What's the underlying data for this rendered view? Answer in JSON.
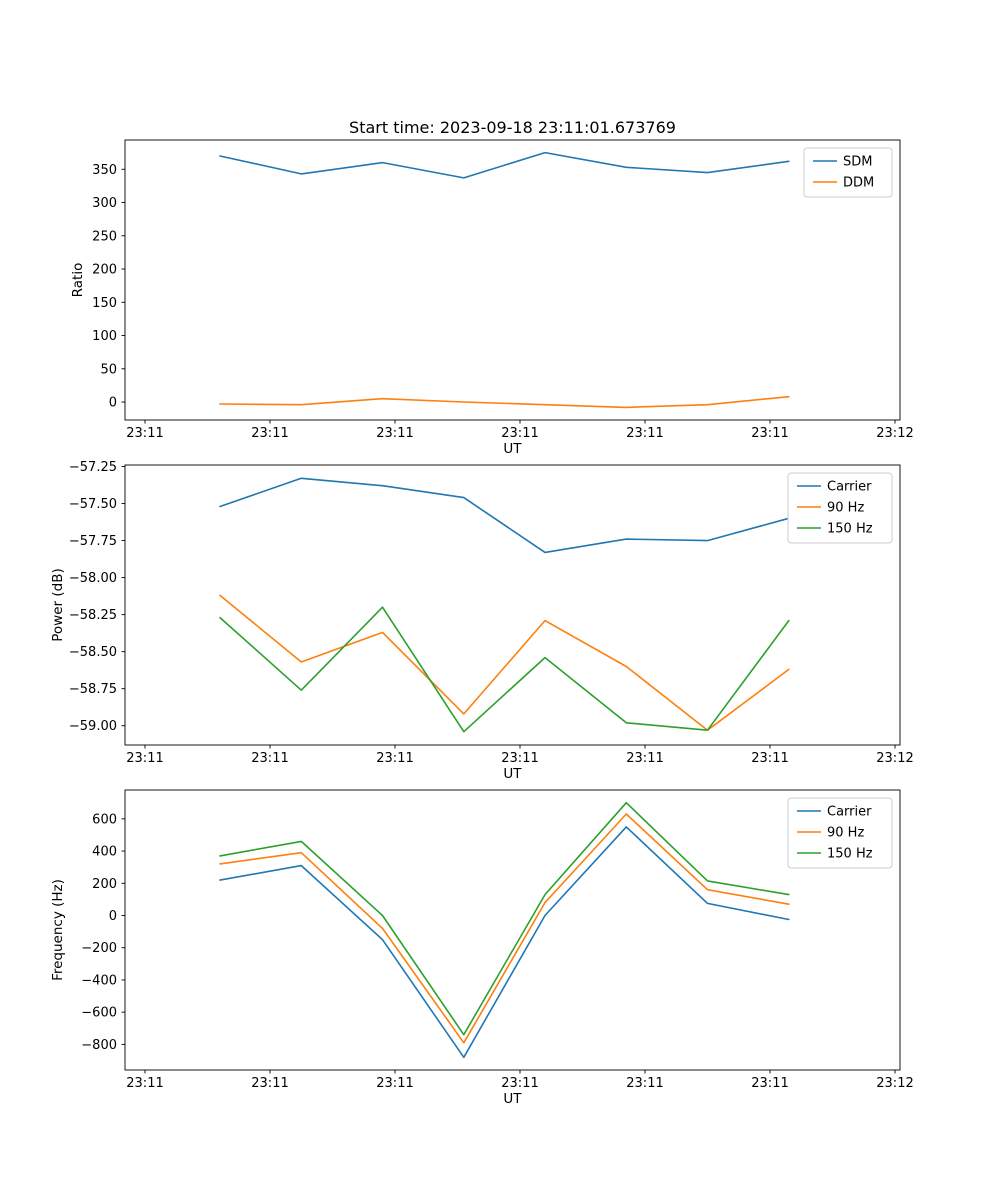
{
  "figure": {
    "background": "#ffffff"
  },
  "chart_data": [
    {
      "type": "line",
      "title": "Start time: 2023-09-18 23:11:01.673769",
      "xlabel": "UT",
      "ylabel": "Ratio",
      "legend_position": "upper right",
      "grid": false,
      "xlim": [
        0,
        60
      ],
      "ylim": [
        -27,
        394
      ],
      "xtick_labels": [
        "23:11",
        "23:11",
        "23:11",
        "23:11",
        "23:11",
        "23:11",
        "23:12"
      ],
      "yticks": [
        0,
        50,
        100,
        150,
        200,
        250,
        300,
        350
      ],
      "ytick_labels": [
        "0",
        "50",
        "100",
        "150",
        "200",
        "250",
        "300",
        "350"
      ],
      "x_seconds": [
        6,
        12.5,
        19,
        25.5,
        32,
        38.5,
        45,
        51.5
      ],
      "series": [
        {
          "name": "SDM",
          "color": "#1f77b4",
          "values": [
            370,
            343,
            360,
            337,
            375,
            353,
            345,
            362
          ]
        },
        {
          "name": "DDM",
          "color": "#ff7f0e",
          "values": [
            -3,
            -4,
            5,
            0,
            -4,
            -8,
            -4,
            8
          ]
        }
      ]
    },
    {
      "type": "line",
      "title": "",
      "xlabel": "UT",
      "ylabel": "Power (dB)",
      "legend_position": "upper right",
      "grid": false,
      "xlim": [
        0,
        60
      ],
      "ylim": [
        -59.13,
        -57.24
      ],
      "xtick_labels": [
        "23:11",
        "23:11",
        "23:11",
        "23:11",
        "23:11",
        "23:11",
        "23:12"
      ],
      "yticks": [
        -59.0,
        -58.75,
        -58.5,
        -58.25,
        -58.0,
        -57.75,
        -57.5,
        -57.25
      ],
      "ytick_labels": [
        "−59.00",
        "−58.75",
        "−58.50",
        "−58.25",
        "−58.00",
        "−57.75",
        "−57.50",
        "−57.25"
      ],
      "x_seconds": [
        6,
        12.5,
        19,
        25.5,
        32,
        38.5,
        45,
        51.5
      ],
      "series": [
        {
          "name": "Carrier",
          "color": "#1f77b4",
          "values": [
            -57.52,
            -57.33,
            -57.38,
            -57.46,
            -57.83,
            -57.74,
            -57.75,
            -57.6
          ]
        },
        {
          "name": "90 Hz",
          "color": "#ff7f0e",
          "values": [
            -58.12,
            -58.57,
            -58.37,
            -58.92,
            -58.29,
            -58.6,
            -59.03,
            -58.62
          ]
        },
        {
          "name": "150 Hz",
          "color": "#2ca02c",
          "values": [
            -58.27,
            -58.76,
            -58.2,
            -59.04,
            -58.54,
            -58.98,
            -59.03,
            -58.29
          ]
        }
      ]
    },
    {
      "type": "line",
      "title": "",
      "xlabel": "UT",
      "ylabel": "Frequency (Hz)",
      "legend_position": "upper right",
      "grid": false,
      "xlim": [
        0,
        60
      ],
      "ylim": [
        -959,
        779
      ],
      "xtick_labels": [
        "23:11",
        "23:11",
        "23:11",
        "23:11",
        "23:11",
        "23:11",
        "23:12"
      ],
      "yticks": [
        -800,
        -600,
        -400,
        -200,
        0,
        200,
        400,
        600
      ],
      "ytick_labels": [
        "−800",
        "−600",
        "−400",
        "−200",
        "0",
        "200",
        "400",
        "600"
      ],
      "x_seconds": [
        6,
        12.5,
        19,
        25.5,
        32,
        38.5,
        45,
        51.5
      ],
      "series": [
        {
          "name": "Carrier",
          "color": "#1f77b4",
          "values": [
            220,
            310,
            -150,
            -880,
            0,
            550,
            75,
            -25
          ]
        },
        {
          "name": "90 Hz",
          "color": "#ff7f0e",
          "values": [
            320,
            390,
            -80,
            -790,
            80,
            630,
            160,
            70
          ]
        },
        {
          "name": "150 Hz",
          "color": "#2ca02c",
          "values": [
            370,
            460,
            0,
            -740,
            130,
            700,
            215,
            130
          ]
        }
      ]
    }
  ]
}
